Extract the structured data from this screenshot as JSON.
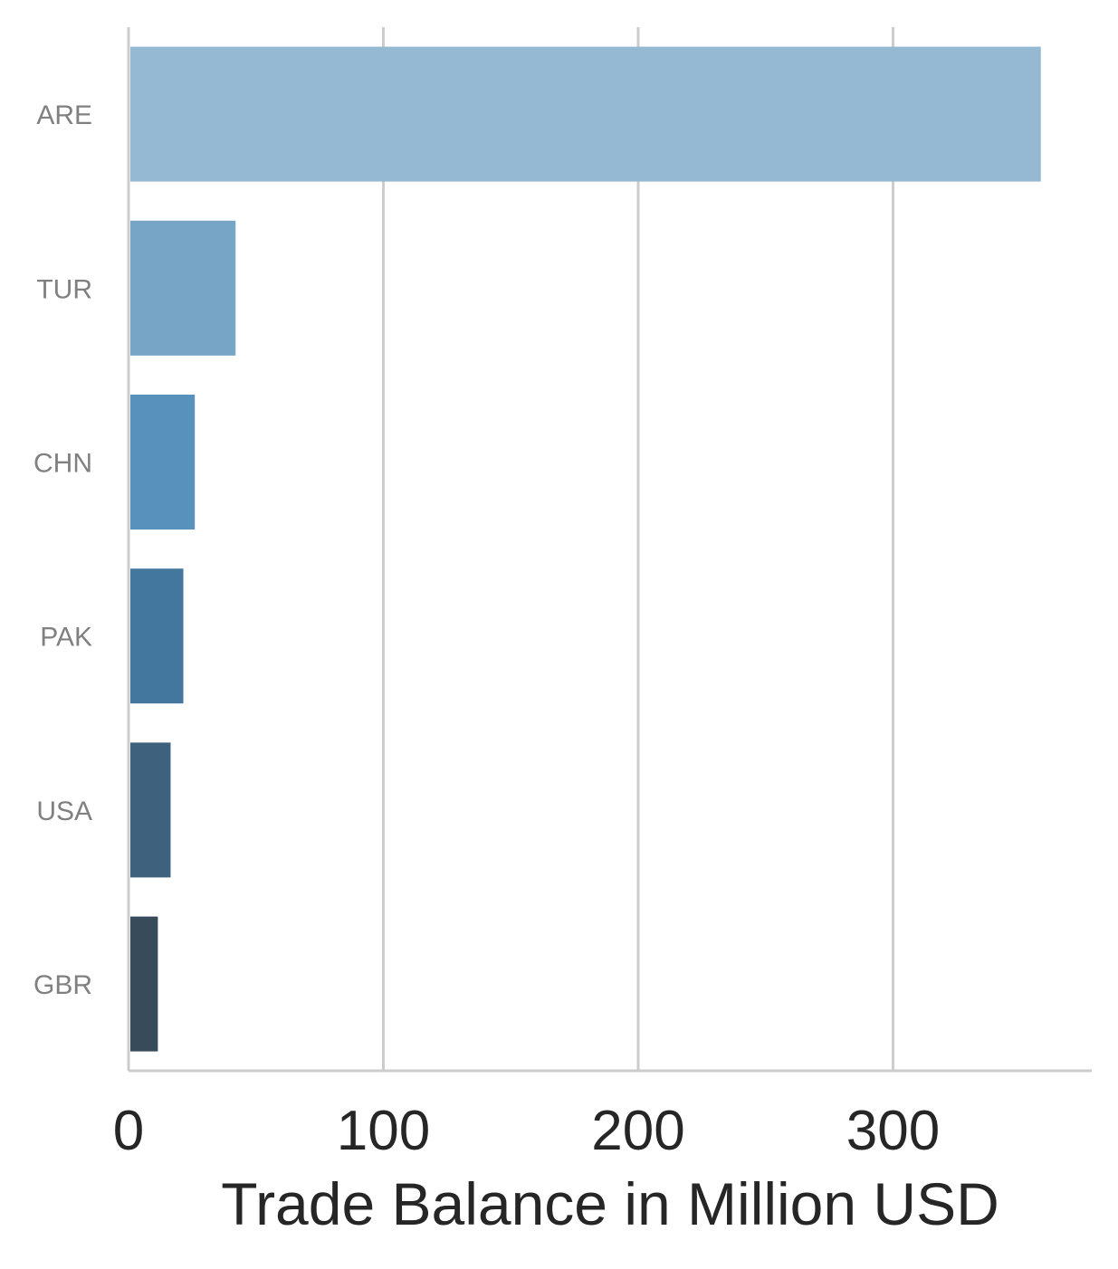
{
  "chart_data": {
    "type": "bar",
    "orientation": "horizontal",
    "title": "",
    "xlabel": "Trade Balance in Million USD",
    "ylabel": "",
    "categories": [
      "ARE",
      "TUR",
      "CHN",
      "PAK",
      "USA",
      "GBR"
    ],
    "values": [
      358,
      42,
      26,
      21.5,
      16.5,
      11.5
    ],
    "xlim": [
      0,
      378
    ],
    "xticks": [
      0,
      100,
      200,
      300
    ],
    "xtick_labels": [
      "0",
      "100",
      "200",
      "300"
    ],
    "grid": "vertical",
    "legend": "none",
    "colors": [
      "#96b9d3",
      "#76a5c6",
      "#5891bb",
      "#44779d",
      "#3e617d",
      "#384b5b"
    ]
  }
}
